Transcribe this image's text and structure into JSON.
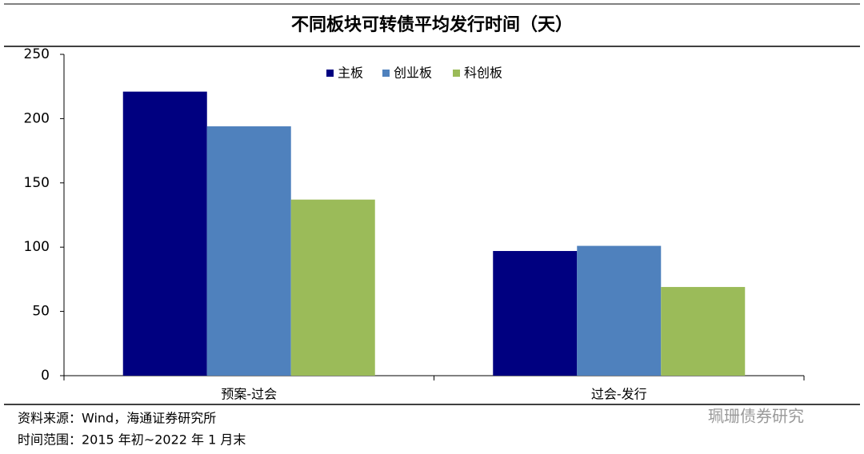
{
  "chart_data": {
    "type": "bar",
    "title": "不同板块可转债平均发行时间（天）",
    "categories": [
      "预案-过会",
      "过会-发行"
    ],
    "series": [
      {
        "name": "主板",
        "color": "#000080",
        "values": [
          221,
          97
        ]
      },
      {
        "name": "创业板",
        "color": "#4f81bd",
        "values": [
          194,
          101
        ]
      },
      {
        "name": "科创板",
        "color": "#9bbb59",
        "values": [
          137,
          69
        ]
      }
    ],
    "ylim": [
      0,
      250
    ],
    "yticks": [
      0,
      50,
      100,
      150,
      200,
      250
    ],
    "grid": false,
    "legend": "top",
    "source": "资料来源：Wind，海通证券研究所",
    "period": "时间范围：2015 年初~2022 年 1 月末",
    "watermark": "珮珊债券研究"
  }
}
